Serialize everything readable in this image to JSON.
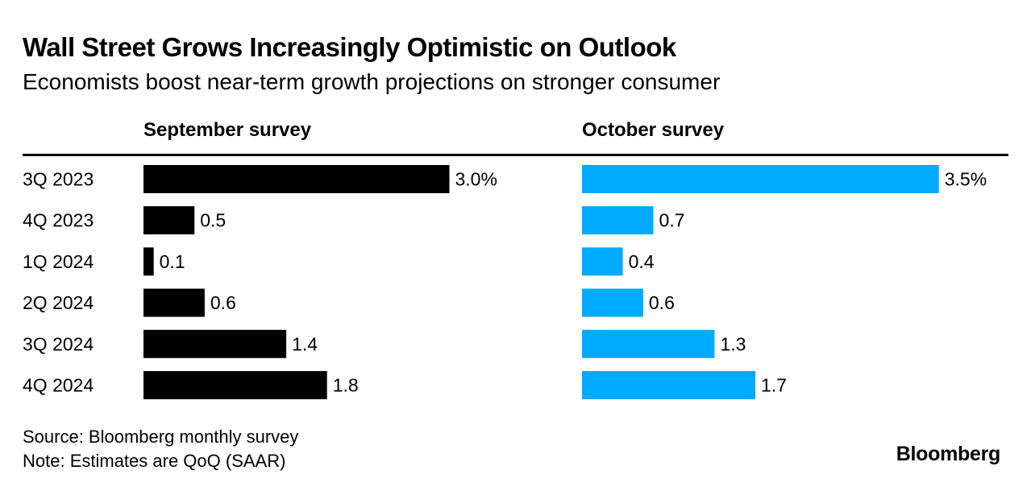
{
  "header": {
    "title": "Wall Street Grows Increasingly Optimistic on Outlook",
    "subtitle": "Economists boost near-term growth projections on stronger consumer"
  },
  "chart_data": {
    "type": "bar",
    "orientation": "horizontal",
    "categories": [
      "3Q 2023",
      "4Q 2023",
      "1Q 2024",
      "2Q 2024",
      "3Q 2024",
      "4Q 2024"
    ],
    "series": [
      {
        "name": "September survey",
        "values": [
          3.0,
          0.5,
          0.1,
          0.6,
          1.4,
          1.8
        ],
        "labels": [
          "3.0%",
          "0.5",
          "0.1",
          "0.6",
          "1.4",
          "1.8"
        ],
        "color": "#000000"
      },
      {
        "name": "October survey",
        "values": [
          3.5,
          0.7,
          0.4,
          0.6,
          1.3,
          1.7
        ],
        "labels": [
          "3.5%",
          "0.7",
          "0.4",
          "0.6",
          "1.3",
          "1.7"
        ],
        "color": "#00aaff"
      }
    ],
    "layout": "small multiples, side by side, shared categories",
    "grid": false
  },
  "footer": {
    "source": "Source: Bloomberg monthly survey",
    "note": "Note: Estimates are QoQ (SAAR)",
    "logo": "Bloomberg"
  }
}
